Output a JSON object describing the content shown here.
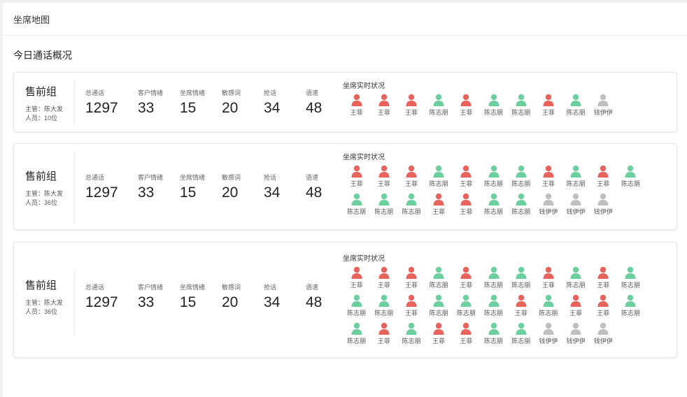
{
  "header": {
    "title": "坐席地图"
  },
  "section_title": "今日通话概况",
  "colors": {
    "busy": "#e8635c",
    "idle": "#6ccf9e",
    "offline": "#bfbfbf"
  },
  "groups": [
    {
      "name": "售前组",
      "manager": "主管：陈大发",
      "members": "人员：10位",
      "stats": [
        {
          "label": "总通话",
          "value": "1297"
        },
        {
          "label": "客户情绪",
          "value": "33"
        },
        {
          "label": "坐席情绪",
          "value": "15"
        },
        {
          "label": "敏感词",
          "value": "20"
        },
        {
          "label": "抢话",
          "value": "34"
        },
        {
          "label": "语速",
          "value": "48"
        }
      ],
      "rt_title": "坐席实时状况",
      "agents": [
        {
          "name": "王菲",
          "status": "busy"
        },
        {
          "name": "王菲",
          "status": "busy"
        },
        {
          "name": "王菲",
          "status": "busy"
        },
        {
          "name": "陈志朋",
          "status": "idle"
        },
        {
          "name": "王菲",
          "status": "busy"
        },
        {
          "name": "陈志朋",
          "status": "idle"
        },
        {
          "name": "陈志朋",
          "status": "idle"
        },
        {
          "name": "王菲",
          "status": "busy"
        },
        {
          "name": "陈志朋",
          "status": "idle"
        },
        {
          "name": "钱伊伊",
          "status": "offline"
        }
      ]
    },
    {
      "name": "售前组",
      "manager": "主管：陈大发",
      "members": "人员：36位",
      "stats": [
        {
          "label": "总通话",
          "value": "1297"
        },
        {
          "label": "客户情绪",
          "value": "33"
        },
        {
          "label": "坐席情绪",
          "value": "15"
        },
        {
          "label": "敏感词",
          "value": "20"
        },
        {
          "label": "抢话",
          "value": "34"
        },
        {
          "label": "语速",
          "value": "48"
        }
      ],
      "rt_title": "坐席实时状况",
      "agents": [
        {
          "name": "王菲",
          "status": "busy"
        },
        {
          "name": "王菲",
          "status": "busy"
        },
        {
          "name": "王菲",
          "status": "busy"
        },
        {
          "name": "陈志朋",
          "status": "idle"
        },
        {
          "name": "王菲",
          "status": "busy"
        },
        {
          "name": "陈志朋",
          "status": "idle"
        },
        {
          "name": "陈志朋",
          "status": "idle"
        },
        {
          "name": "王菲",
          "status": "busy"
        },
        {
          "name": "陈志朋",
          "status": "idle"
        },
        {
          "name": "王菲",
          "status": "busy"
        },
        {
          "name": "陈志朋",
          "status": "idle"
        },
        {
          "name": "陈志朋",
          "status": "idle"
        },
        {
          "name": "陈志朋",
          "status": "idle"
        },
        {
          "name": "陈志朋",
          "status": "idle"
        },
        {
          "name": "王菲",
          "status": "busy"
        },
        {
          "name": "王菲",
          "status": "busy"
        },
        {
          "name": "陈志朋",
          "status": "idle"
        },
        {
          "name": "陈志朋",
          "status": "idle"
        },
        {
          "name": "钱伊伊",
          "status": "offline"
        },
        {
          "name": "钱伊伊",
          "status": "offline"
        },
        {
          "name": "钱伊伊",
          "status": "offline"
        }
      ]
    },
    {
      "name": "售前组",
      "manager": "主管：陈大发",
      "members": "人员：36位",
      "stats": [
        {
          "label": "总通话",
          "value": "1297"
        },
        {
          "label": "客户情绪",
          "value": "33"
        },
        {
          "label": "坐席情绪",
          "value": "15"
        },
        {
          "label": "敏感词",
          "value": "20"
        },
        {
          "label": "抢话",
          "value": "34"
        },
        {
          "label": "语速",
          "value": "48"
        }
      ],
      "rt_title": "坐席实时状况",
      "agents": [
        {
          "name": "王菲",
          "status": "busy"
        },
        {
          "name": "王菲",
          "status": "busy"
        },
        {
          "name": "王菲",
          "status": "busy"
        },
        {
          "name": "陈志朋",
          "status": "idle"
        },
        {
          "name": "王菲",
          "status": "busy"
        },
        {
          "name": "陈志朋",
          "status": "idle"
        },
        {
          "name": "陈志朋",
          "status": "idle"
        },
        {
          "name": "王菲",
          "status": "busy"
        },
        {
          "name": "陈志朋",
          "status": "idle"
        },
        {
          "name": "王菲",
          "status": "busy"
        },
        {
          "name": "陈志朋",
          "status": "idle"
        },
        {
          "name": "陈志朋",
          "status": "idle"
        },
        {
          "name": "陈志朋",
          "status": "idle"
        },
        {
          "name": "王菲",
          "status": "busy"
        },
        {
          "name": "陈志朋",
          "status": "idle"
        },
        {
          "name": "陈志朋",
          "status": "idle"
        },
        {
          "name": "陈志朋",
          "status": "idle"
        },
        {
          "name": "王菲",
          "status": "busy"
        },
        {
          "name": "陈志朋",
          "status": "idle"
        },
        {
          "name": "王菲",
          "status": "busy"
        },
        {
          "name": "王菲",
          "status": "busy"
        },
        {
          "name": "陈志朋",
          "status": "idle"
        },
        {
          "name": "陈志朋",
          "status": "idle"
        },
        {
          "name": "王菲",
          "status": "busy"
        },
        {
          "name": "陈志朋",
          "status": "idle"
        },
        {
          "name": "王菲",
          "status": "busy"
        },
        {
          "name": "王菲",
          "status": "busy"
        },
        {
          "name": "陈志朋",
          "status": "idle"
        },
        {
          "name": "陈志朋",
          "status": "idle"
        },
        {
          "name": "钱伊伊",
          "status": "offline"
        },
        {
          "name": "钱伊伊",
          "status": "offline"
        },
        {
          "name": "钱伊伊",
          "status": "offline"
        }
      ]
    }
  ]
}
